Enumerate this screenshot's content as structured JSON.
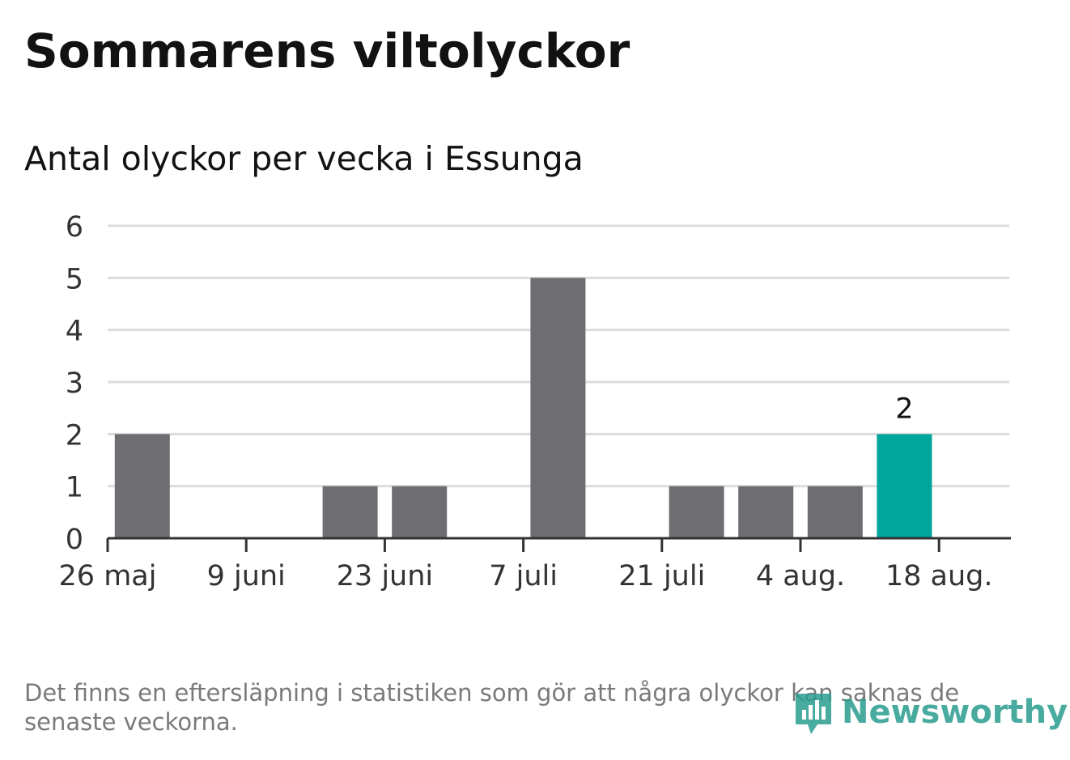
{
  "header": {
    "title": "Sommarens viltolyckor",
    "subtitle": "Antal olyckor per vecka i Essunga"
  },
  "footer": {
    "note": "Det finns en eftersläpning i statistiken som gör att några olyckor kan saknas de senaste veckorna.",
    "brand": "Newsworthy"
  },
  "colors": {
    "bar": "#6e6d72",
    "highlight": "#00a59b",
    "grid": "#dcdcdc",
    "axis": "#333333",
    "text": "#333333"
  },
  "chart_data": {
    "type": "bar",
    "x_tick_labels": [
      "26 maj",
      "9 juni",
      "23 juni",
      "7 juli",
      "21 juli",
      "4 aug.",
      "18 aug."
    ],
    "values": [
      2,
      0,
      0,
      1,
      1,
      0,
      5,
      0,
      1,
      1,
      1,
      2
    ],
    "highlight_index": 11,
    "data_labels": [
      {
        "index": 11,
        "text": "2"
      }
    ],
    "ylim": [
      0,
      6
    ],
    "yticks": [
      0,
      1,
      2,
      3,
      4,
      5,
      6
    ],
    "grid": true,
    "xlabel": "",
    "ylabel": ""
  }
}
